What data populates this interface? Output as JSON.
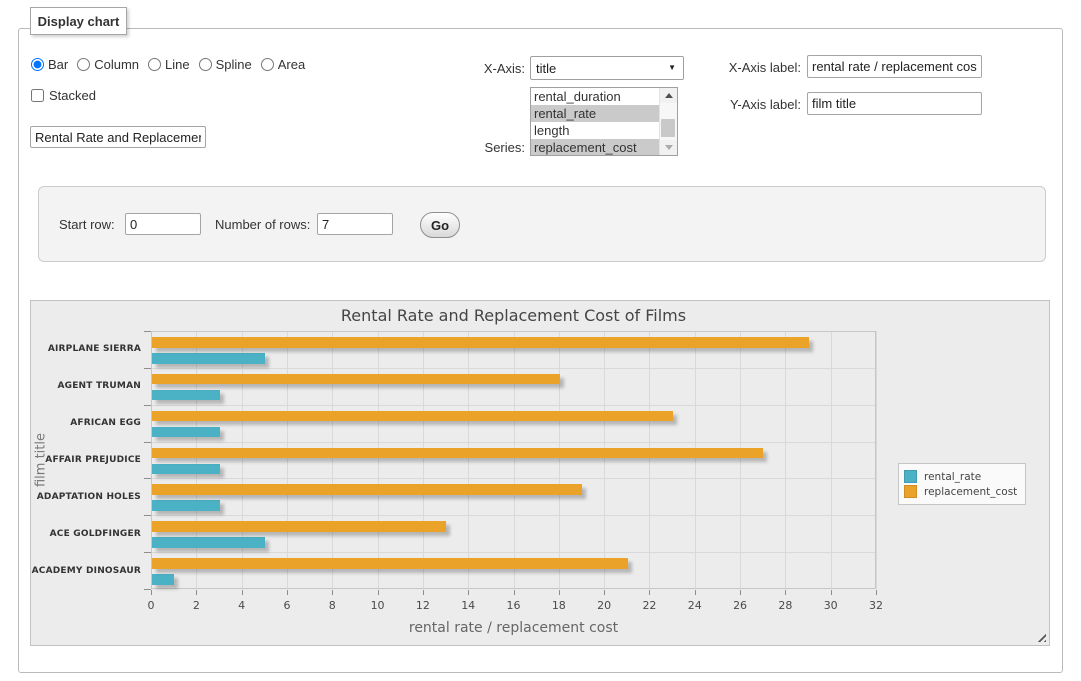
{
  "form": {
    "legend_title": "Display chart",
    "chart_types": {
      "options": [
        {
          "label": "Bar",
          "checked": true
        },
        {
          "label": "Column",
          "checked": false
        },
        {
          "label": "Line",
          "checked": false
        },
        {
          "label": "Spline",
          "checked": false
        },
        {
          "label": "Area",
          "checked": false
        }
      ]
    },
    "stacked": {
      "label": "Stacked",
      "checked": false
    },
    "chart_title_value": "Rental Rate and Replacement Cost of Films",
    "x_axis_select": {
      "label": "X-Axis:",
      "selected": "title"
    },
    "series_list": {
      "label": "Series:",
      "options": [
        {
          "label": "rental_duration",
          "selected": false
        },
        {
          "label": "rental_rate",
          "selected": true
        },
        {
          "label": "length",
          "selected": false
        },
        {
          "label": "replacement_cost",
          "selected": true
        }
      ]
    },
    "x_axis_label_field": {
      "label": "X-Axis label:",
      "value": "rental rate / replacement cost"
    },
    "y_axis_label_field": {
      "label": "Y-Axis label:",
      "value": "film title"
    },
    "row_controls": {
      "start_row_label": "Start row:",
      "start_row_value": "0",
      "num_rows_label": "Number of rows:",
      "num_rows_value": "7",
      "go_button": "Go"
    }
  },
  "chart_data": {
    "type": "bar",
    "orientation": "horizontal",
    "title": "Rental Rate and Replacement Cost of Films",
    "xlabel": "rental rate / replacement cost",
    "ylabel": "film title",
    "categories": [
      "AIRPLANE SIERRA",
      "AGENT TRUMAN",
      "AFRICAN EGG",
      "AFFAIR PREJUDICE",
      "ADAPTATION HOLES",
      "ACE GOLDFINGER",
      "ACADEMY DINOSAUR"
    ],
    "series": [
      {
        "name": "rental_rate",
        "color": "#4bb2c5",
        "values": [
          4.99,
          2.99,
          2.99,
          2.99,
          2.99,
          4.99,
          0.99
        ]
      },
      {
        "name": "replacement_cost",
        "color": "#EAA228",
        "values": [
          28.99,
          17.99,
          22.99,
          26.99,
          18.99,
          12.99,
          20.99
        ]
      }
    ],
    "xlim": [
      0,
      32
    ],
    "xticks": [
      0,
      2,
      4,
      6,
      8,
      10,
      12,
      14,
      16,
      18,
      20,
      22,
      24,
      26,
      28,
      30,
      32
    ],
    "grid": true,
    "legend_position": "outside-right",
    "plot_background": "#ececec",
    "grid_line_color": "#d9d9d9"
  }
}
